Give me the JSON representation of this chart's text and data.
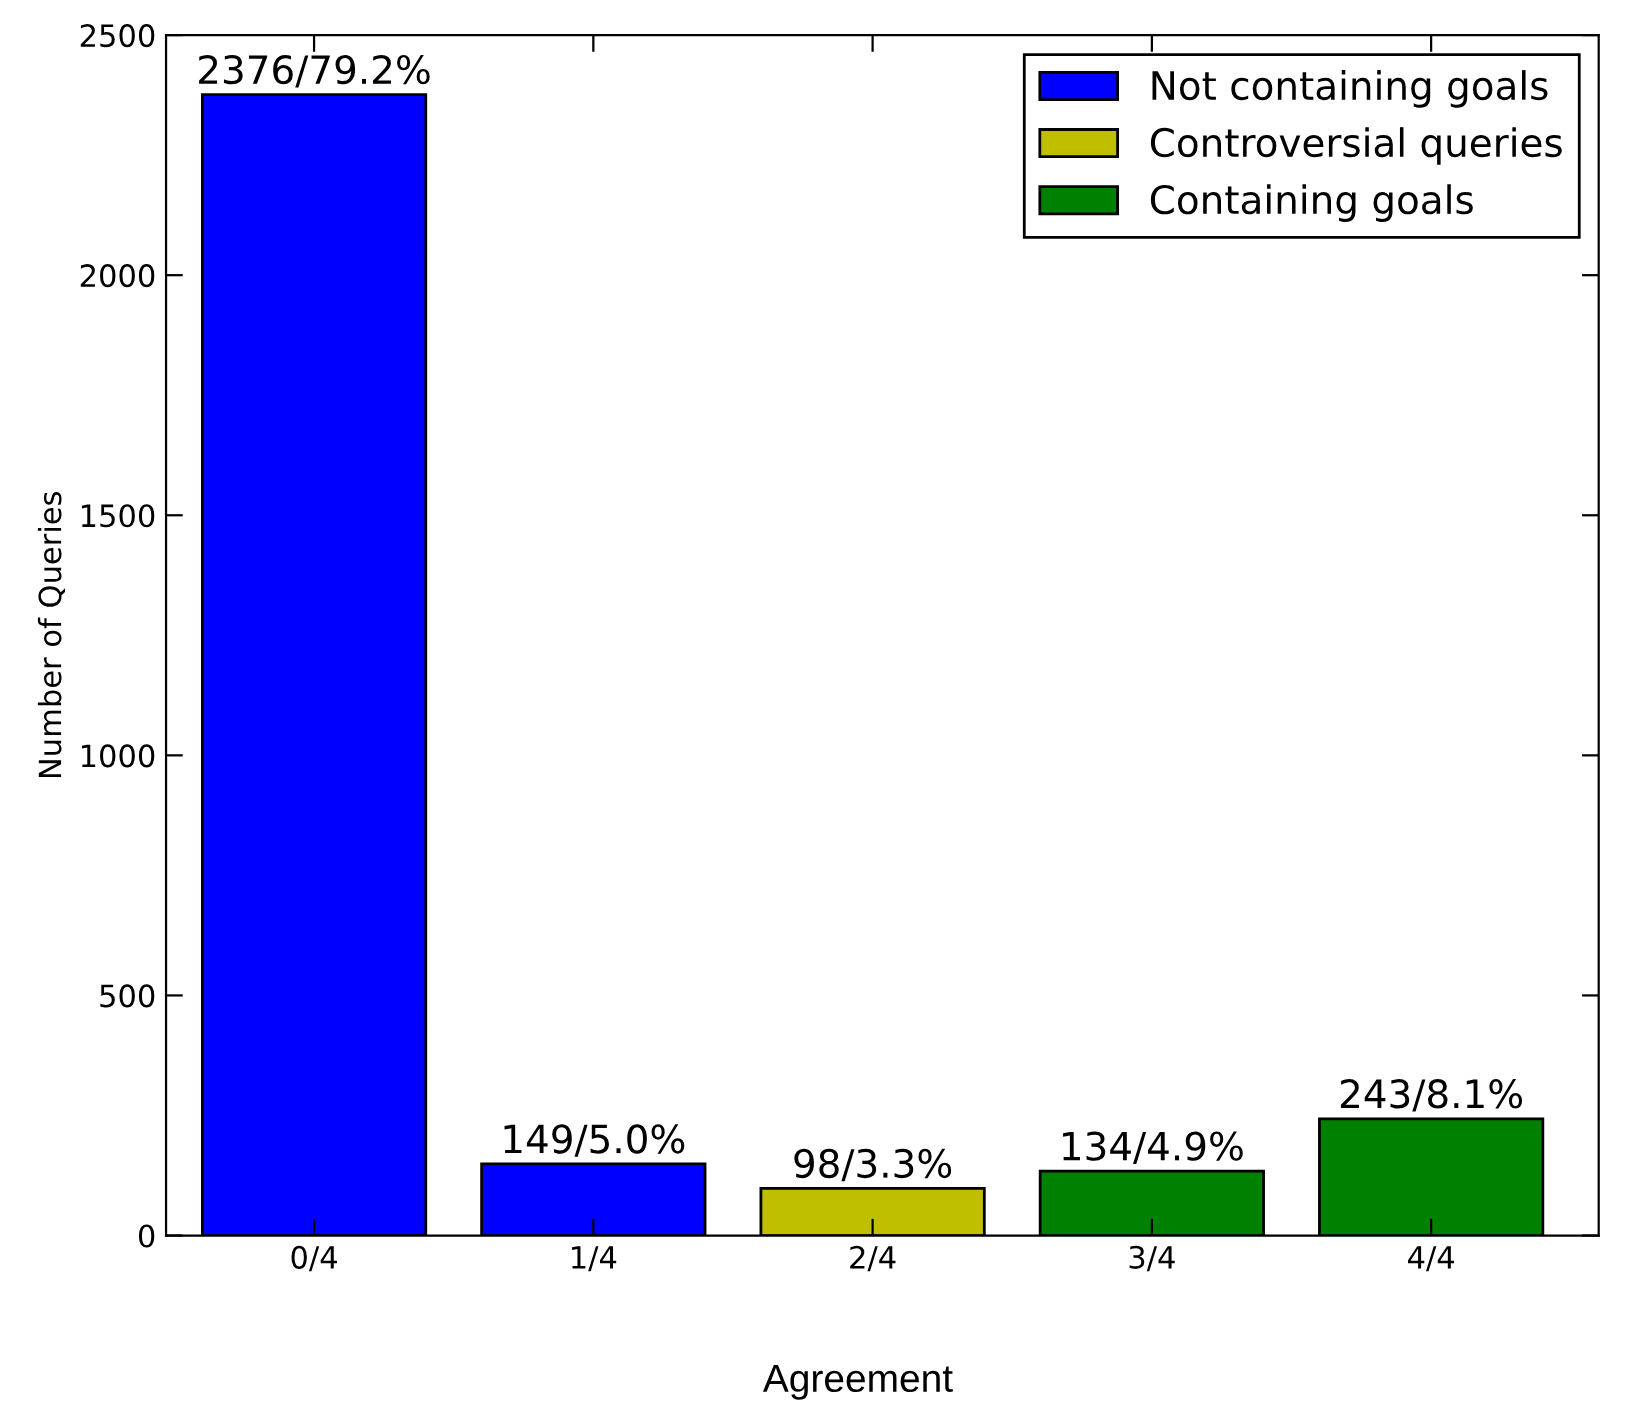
{
  "chart_data": {
    "type": "bar",
    "xlabel": "Agreement",
    "ylabel": "Number of Queries",
    "categories": [
      "0/4",
      "1/4",
      "2/4",
      "3/4",
      "4/4"
    ],
    "series": [
      {
        "name": "Not containing goals",
        "color": "#0000ff",
        "values": [
          2376,
          149,
          null,
          null,
          null
        ],
        "value_labels": [
          "2376/79.2%",
          "149/5.0%",
          null,
          null,
          null
        ]
      },
      {
        "name": "Controversial queries",
        "color": "#bfbf00",
        "values": [
          null,
          null,
          98,
          null,
          null
        ],
        "value_labels": [
          null,
          null,
          "98/3.3%",
          null,
          null
        ]
      },
      {
        "name": "Containing goals",
        "color": "#008000",
        "values": [
          null,
          null,
          null,
          134,
          243
        ],
        "value_labels": [
          null,
          null,
          null,
          "134/4.9%",
          "243/8.1%"
        ]
      }
    ],
    "ylim": [
      0,
      2500
    ],
    "yticks": [
      0,
      500,
      1000,
      1500,
      2000,
      2500
    ],
    "legend": "top right",
    "grid": false
  }
}
